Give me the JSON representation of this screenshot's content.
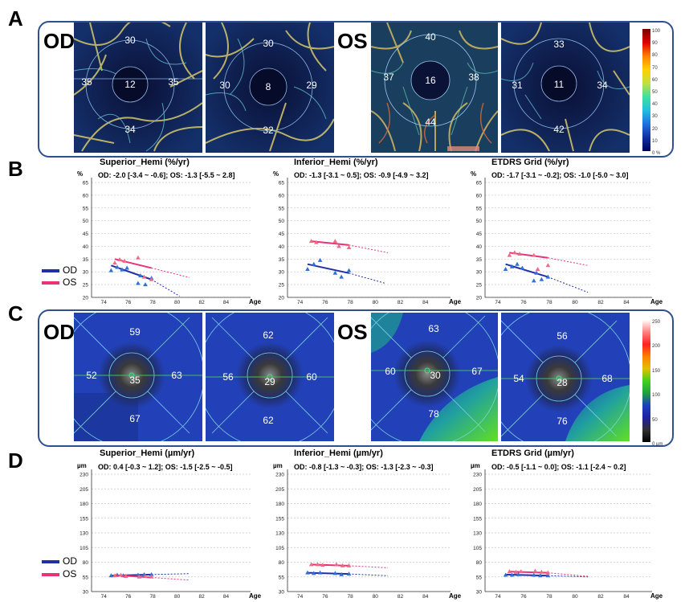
{
  "panels": {
    "a": "A",
    "b": "B",
    "c": "C",
    "d": "D"
  },
  "eyes": {
    "od": "OD",
    "os": "OS"
  },
  "panel_a": {
    "od1": {
      "top": "30",
      "left": "35",
      "center": "12",
      "right": "35",
      "bottom": "34"
    },
    "od2": {
      "top": "30",
      "left": "30",
      "center": "8",
      "right": "29",
      "bottom": "32"
    },
    "os1": {
      "top": "40",
      "left": "37",
      "center": "16",
      "right": "38",
      "bottom": "44"
    },
    "os2": {
      "top": "33",
      "left": "31",
      "center": "11",
      "right": "34",
      "bottom": "42"
    },
    "colorbar": {
      "ticks": [
        "100",
        "90",
        "80",
        "70",
        "60",
        "50",
        "40",
        "30",
        "20",
        "10",
        "0 %"
      ]
    }
  },
  "panel_c": {
    "od1": {
      "top": "59",
      "left": "52",
      "center": "35",
      "right": "63",
      "bottom": "67"
    },
    "od2": {
      "top": "62",
      "left": "56",
      "center": "29",
      "right": "60",
      "bottom": "62"
    },
    "os1": {
      "top": "63",
      "left": "60",
      "center": "30",
      "right": "67",
      "bottom": "78"
    },
    "os2": {
      "top": "56",
      "left": "54",
      "center": "28",
      "right": "68",
      "bottom": "76"
    },
    "colorbar": {
      "ticks": [
        "250",
        "200",
        "150",
        "100",
        "50",
        "0 µm"
      ]
    }
  },
  "legend": {
    "od": "OD",
    "os": "OS",
    "od_color": "#1f2fa8",
    "os_color": "#e8327a"
  },
  "colors": {
    "od": "#2f6fd8",
    "os": "#f06a86",
    "od_line": "#1f2fa8",
    "os_line": "#e8327a"
  },
  "chart_data": [
    {
      "type": "scatter",
      "title": "Superior_Hemi (%/yr)",
      "subtitle": "OD: -2.0 [-3.4 ~ -0.6]; OS: -1.3 [-5.5 ~ 2.8]",
      "ylabel": "%",
      "xlabel": "Age",
      "ylim": [
        20,
        65
      ],
      "yticks": [
        20,
        25,
        30,
        35,
        40,
        45,
        50,
        55,
        60,
        65
      ],
      "xlim": [
        73,
        86
      ],
      "xticks": [
        74,
        76,
        78,
        80,
        82,
        84
      ],
      "series": [
        {
          "name": "OD",
          "x": [
            74.6,
            75.1,
            75.5,
            75.9,
            76.8,
            77.0,
            77.4,
            77.9
          ],
          "y": [
            30.5,
            31.8,
            30.8,
            31.5,
            25.5,
            28.5,
            25.0,
            27.5
          ],
          "fit": [
            [
              74.6,
              32.5
            ],
            [
              77.9,
              27.0
            ]
          ],
          "proj": [
            [
              77.9,
              27.0
            ],
            [
              80.2,
              20.5
            ]
          ]
        },
        {
          "name": "OS",
          "x": [
            74.9,
            75.3,
            75.7,
            76.8,
            77.3,
            77.9
          ],
          "y": [
            33.5,
            34.8,
            34.2,
            35.5,
            28.0,
            27.0
          ],
          "fit": [
            [
              74.9,
              35.0
            ],
            [
              77.9,
              31.5
            ]
          ],
          "proj": [
            [
              77.9,
              31.5
            ],
            [
              81.0,
              27.8
            ]
          ]
        }
      ]
    },
    {
      "type": "scatter",
      "title": "Inferior_Hemi (%/yr)",
      "subtitle": "OD: -1.3 [-3.1 ~ 0.5]; OS: -0.9 [-4.9 ~ 3.2]",
      "ylabel": "%",
      "xlabel": "Age",
      "ylim": [
        20,
        65
      ],
      "yticks": [
        20,
        25,
        30,
        35,
        40,
        45,
        50,
        55,
        60,
        65
      ],
      "xlim": [
        73,
        86
      ],
      "xticks": [
        74,
        76,
        78,
        80,
        82,
        84
      ],
      "series": [
        {
          "name": "OD",
          "x": [
            74.6,
            75.1,
            75.6,
            76.8,
            77.3,
            77.9
          ],
          "y": [
            31.0,
            33.0,
            34.5,
            29.5,
            28.0,
            30.5
          ],
          "fit": [
            [
              74.6,
              33.0
            ],
            [
              77.9,
              29.5
            ]
          ],
          "proj": [
            [
              77.9,
              29.5
            ],
            [
              80.8,
              25.5
            ]
          ]
        },
        {
          "name": "OS",
          "x": [
            74.9,
            75.3,
            76.8,
            77.1,
            77.9
          ],
          "y": [
            42.0,
            41.5,
            42.0,
            40.0,
            39.5
          ],
          "fit": [
            [
              74.9,
              42.0
            ],
            [
              77.9,
              40.5
            ]
          ],
          "proj": [
            [
              77.9,
              40.5
            ],
            [
              81.0,
              37.5
            ]
          ]
        }
      ]
    },
    {
      "type": "scatter",
      "title": "ETDRS Grid (%/yr)",
      "subtitle": "OD: -1.7 [-3.1 ~ -0.2]; OS: -1.0 [-5.0 ~ 3.0]",
      "ylabel": "%",
      "xlabel": "Age",
      "ylim": [
        20,
        65
      ],
      "yticks": [
        20,
        25,
        30,
        35,
        40,
        45,
        50,
        55,
        60,
        65
      ],
      "xlim": [
        73,
        86
      ],
      "xticks": [
        74,
        76,
        78,
        80,
        82,
        84
      ],
      "series": [
        {
          "name": "OD",
          "x": [
            74.6,
            75.1,
            75.5,
            75.9,
            76.8,
            77.0,
            77.4,
            77.9
          ],
          "y": [
            31.0,
            32.0,
            33.0,
            31.5,
            26.5,
            29.5,
            27.0,
            28.0
          ],
          "fit": [
            [
              74.6,
              33.0
            ],
            [
              77.9,
              28.0
            ]
          ],
          "proj": [
            [
              77.9,
              28.0
            ],
            [
              81.0,
              22.0
            ]
          ]
        },
        {
          "name": "OS",
          "x": [
            74.9,
            75.3,
            75.7,
            76.8,
            77.1,
            77.9
          ],
          "y": [
            36.5,
            37.5,
            37.0,
            36.5,
            31.0,
            32.5
          ],
          "fit": [
            [
              74.9,
              37.5
            ],
            [
              77.9,
              35.5
            ]
          ],
          "proj": [
            [
              77.9,
              35.5
            ],
            [
              81.0,
              32.5
            ]
          ]
        }
      ]
    },
    {
      "type": "scatter",
      "title": "Superior_Hemi (µm/yr)",
      "subtitle": "OD: 0.4 [-0.3 ~ 1.2]; OS: -1.5 [-2.5 ~ -0.5]",
      "ylabel": "µm",
      "xlabel": "Age",
      "ylim": [
        30,
        230
      ],
      "yticks": [
        30,
        55,
        80,
        105,
        130,
        155,
        180,
        205,
        230
      ],
      "xlim": [
        73,
        86
      ],
      "xticks": [
        74,
        76,
        78,
        80,
        82,
        84
      ],
      "series": [
        {
          "name": "OD",
          "x": [
            74.6,
            75.1,
            75.6,
            76.8,
            77.3,
            77.9
          ],
          "y": [
            57,
            58,
            57,
            58,
            59,
            59
          ],
          "fit": [
            [
              74.6,
              57
            ],
            [
              77.9,
              59
            ]
          ],
          "proj": [
            [
              77.9,
              59
            ],
            [
              81.0,
              60.5
            ]
          ]
        },
        {
          "name": "OS",
          "x": [
            74.9,
            75.4,
            75.8,
            76.9,
            77.4,
            77.9
          ],
          "y": [
            57,
            58,
            56,
            55,
            56,
            55
          ],
          "fit": [
            [
              74.9,
              58
            ],
            [
              77.9,
              54
            ]
          ],
          "proj": [
            [
              77.9,
              54
            ],
            [
              81.0,
              49.5
            ]
          ]
        }
      ]
    },
    {
      "type": "scatter",
      "title": "Inferior_Hemi (µm/yr)",
      "subtitle": "OD: -0.8 [-1.3 ~ -0.3]; OS: -1.3 [-2.3 ~ -0.3]",
      "ylabel": "µm",
      "xlabel": "Age",
      "ylim": [
        30,
        230
      ],
      "yticks": [
        30,
        55,
        80,
        105,
        130,
        155,
        180,
        205,
        230
      ],
      "xlim": [
        73,
        86
      ],
      "xticks": [
        74,
        76,
        78,
        80,
        82,
        84
      ],
      "series": [
        {
          "name": "OD",
          "x": [
            74.6,
            75.1,
            75.6,
            76.8,
            77.3,
            77.9
          ],
          "y": [
            62,
            61,
            62,
            61,
            59,
            60
          ],
          "fit": [
            [
              74.6,
              62
            ],
            [
              77.9,
              60
            ]
          ],
          "proj": [
            [
              77.9,
              60
            ],
            [
              81.0,
              57
            ]
          ]
        },
        {
          "name": "OS",
          "x": [
            74.9,
            75.4,
            75.8,
            76.9,
            77.4,
            77.9
          ],
          "y": [
            76,
            76,
            75,
            76,
            74,
            74
          ],
          "fit": [
            [
              74.9,
              76
            ],
            [
              77.9,
              74
            ]
          ],
          "proj": [
            [
              77.9,
              74
            ],
            [
              81.0,
              70.5
            ]
          ]
        }
      ]
    },
    {
      "type": "scatter",
      "title": "ETDRS Grid (µm/yr)",
      "subtitle": "OD: -0.5 [-1.1 ~ 0.0]; OS: -1.1 [-2.4 ~ 0.2]",
      "ylabel": "µm",
      "xlabel": "Age",
      "ylim": [
        30,
        230
      ],
      "yticks": [
        30,
        55,
        80,
        105,
        130,
        155,
        180,
        205,
        230
      ],
      "xlim": [
        73,
        86
      ],
      "xticks": [
        74,
        76,
        78,
        80,
        82,
        84
      ],
      "series": [
        {
          "name": "OD",
          "x": [
            74.6,
            75.1,
            75.6,
            76.8,
            77.3,
            77.9
          ],
          "y": [
            58,
            58,
            59,
            58,
            57,
            57
          ],
          "fit": [
            [
              74.6,
              59
            ],
            [
              77.9,
              57
            ]
          ],
          "proj": [
            [
              77.9,
              57
            ],
            [
              81.0,
              55
            ]
          ]
        },
        {
          "name": "OS",
          "x": [
            74.9,
            75.4,
            75.8,
            76.9,
            77.4,
            77.9
          ],
          "y": [
            64,
            63,
            64,
            65,
            63,
            62
          ],
          "fit": [
            [
              74.9,
              64
            ],
            [
              77.9,
              62
            ]
          ],
          "proj": [
            [
              77.9,
              62
            ],
            [
              81.0,
              56
            ]
          ]
        }
      ]
    }
  ]
}
